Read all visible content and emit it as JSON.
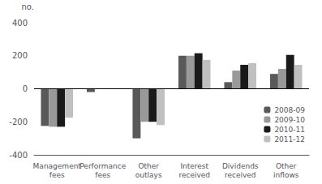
{
  "chart_data": {
    "type": "bar",
    "ylabel": "no.",
    "categories": [
      "Management\nfees",
      "Performance\nfees",
      "Other\noutlays",
      "Interest\nreceived",
      "Dividends\nreceived",
      "Other\ninflows"
    ],
    "series": [
      {
        "name": "2008-09",
        "color": "#595959",
        "values": [
          -225,
          -20,
          -300,
          200,
          40,
          90
        ]
      },
      {
        "name": "2009-10",
        "color": "#999999",
        "values": [
          -230,
          0,
          -200,
          200,
          110,
          120
        ]
      },
      {
        "name": "2010-11",
        "color": "#1a1a1a",
        "values": [
          -230,
          0,
          -200,
          215,
          145,
          205
        ]
      },
      {
        "name": "2011-12",
        "color": "#c0c0c0",
        "values": [
          -175,
          0,
          -220,
          175,
          155,
          145
        ]
      }
    ],
    "ylim": [
      -400,
      400
    ],
    "yticks": [
      -400,
      -200,
      0,
      200,
      400
    ],
    "grid": false,
    "legend": "lower right"
  }
}
